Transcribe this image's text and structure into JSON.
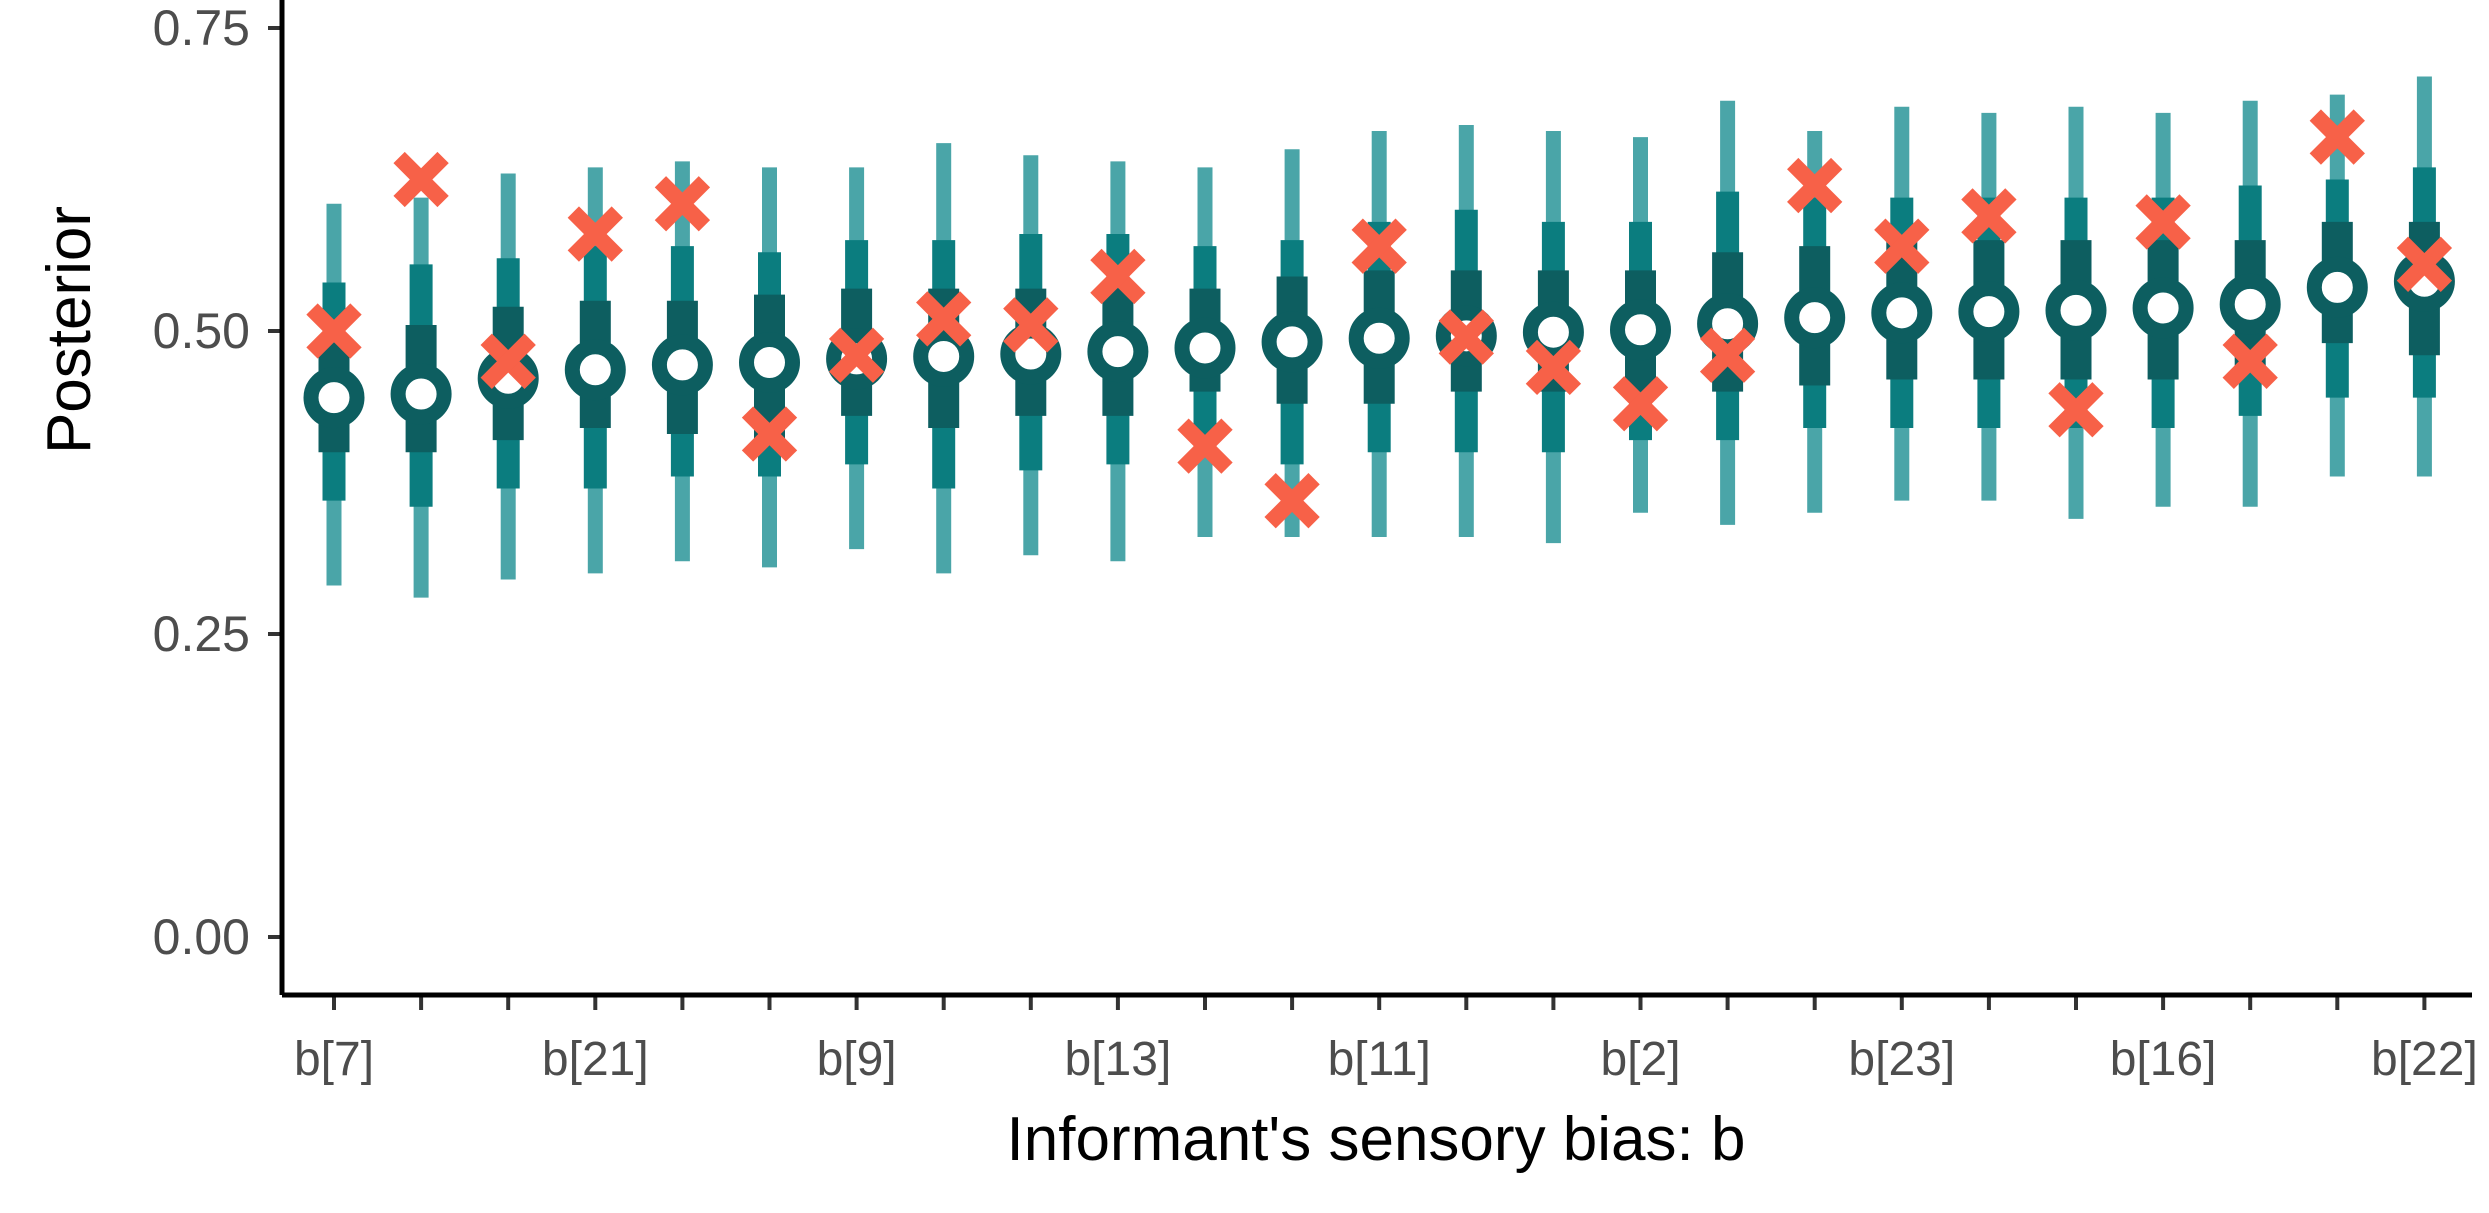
{
  "chart_data": {
    "type": "scatter",
    "xlabel": "Informant's sensory bias: b",
    "ylabel": "Posterior",
    "ylim": [
      -0.05,
      0.78
    ],
    "yticks": [
      0.0,
      0.25,
      0.5,
      0.75
    ],
    "ytick_labels": [
      "0.00",
      "0.25",
      "0.50",
      "0.75"
    ],
    "categories": [
      "b[7]",
      "",
      "",
      "b[21]",
      "",
      "",
      "b[9]",
      "",
      "",
      "b[13]",
      "",
      "",
      "b[11]",
      "",
      "",
      "b[2]",
      "",
      "",
      "b[23]",
      "",
      "",
      "b[16]",
      "",
      "",
      "b[22]"
    ],
    "grid": false,
    "legend": "none",
    "colors": {
      "outer_interval": "#4aa5a8",
      "middle_interval": "#0b7d7f",
      "inner_interval": "#0d5e60",
      "point": "#0d5e60",
      "true_value": "#f76148"
    },
    "series": [
      {
        "values": {
          "median": [
            0.445,
            0.448,
            0.461,
            0.468,
            0.472,
            0.474,
            0.477,
            0.479,
            0.481,
            0.483,
            0.486,
            0.491,
            0.494,
            0.496,
            0.499,
            0.501,
            0.506,
            0.511,
            0.515,
            0.516,
            0.517,
            0.519,
            0.522,
            0.536,
            0.541
          ],
          "inner_low": [
            0.4,
            0.4,
            0.41,
            0.42,
            0.415,
            0.41,
            0.43,
            0.42,
            0.43,
            0.43,
            0.45,
            0.44,
            0.44,
            0.45,
            0.45,
            0.45,
            0.45,
            0.455,
            0.46,
            0.46,
            0.46,
            0.46,
            0.47,
            0.49,
            0.48
          ],
          "inner_high": [
            0.49,
            0.505,
            0.52,
            0.525,
            0.525,
            0.53,
            0.535,
            0.535,
            0.535,
            0.535,
            0.535,
            0.545,
            0.55,
            0.55,
            0.55,
            0.55,
            0.565,
            0.57,
            0.575,
            0.575,
            0.575,
            0.575,
            0.575,
            0.59,
            0.59
          ],
          "mid_low": [
            0.36,
            0.355,
            0.37,
            0.37,
            0.38,
            0.38,
            0.39,
            0.37,
            0.385,
            0.39,
            0.4,
            0.39,
            0.4,
            0.4,
            0.4,
            0.41,
            0.41,
            0.42,
            0.42,
            0.42,
            0.42,
            0.42,
            0.43,
            0.445,
            0.445
          ],
          "mid_high": [
            0.54,
            0.555,
            0.56,
            0.57,
            0.57,
            0.565,
            0.575,
            0.575,
            0.58,
            0.58,
            0.57,
            0.575,
            0.59,
            0.6,
            0.59,
            0.59,
            0.615,
            0.61,
            0.61,
            0.61,
            0.61,
            0.61,
            0.62,
            0.625,
            0.635
          ],
          "outer_low": [
            0.29,
            0.28,
            0.295,
            0.3,
            0.31,
            0.305,
            0.32,
            0.3,
            0.315,
            0.31,
            0.33,
            0.33,
            0.33,
            0.33,
            0.325,
            0.35,
            0.34,
            0.35,
            0.36,
            0.36,
            0.345,
            0.355,
            0.355,
            0.38,
            0.38
          ],
          "outer_high": [
            0.605,
            0.61,
            0.63,
            0.635,
            0.64,
            0.635,
            0.635,
            0.655,
            0.645,
            0.64,
            0.635,
            0.65,
            0.665,
            0.67,
            0.665,
            0.66,
            0.69,
            0.665,
            0.685,
            0.68,
            0.685,
            0.68,
            0.69,
            0.695,
            0.71
          ]
        }
      },
      {
        "values": [
          0.5,
          0.625,
          0.475,
          0.58,
          0.605,
          0.415,
          0.48,
          0.51,
          0.505,
          0.545,
          0.405,
          0.36,
          0.57,
          0.495,
          0.47,
          0.44,
          0.48,
          0.62,
          0.57,
          0.595,
          0.435,
          0.59,
          0.475,
          0.66,
          0.555
        ]
      }
    ]
  }
}
